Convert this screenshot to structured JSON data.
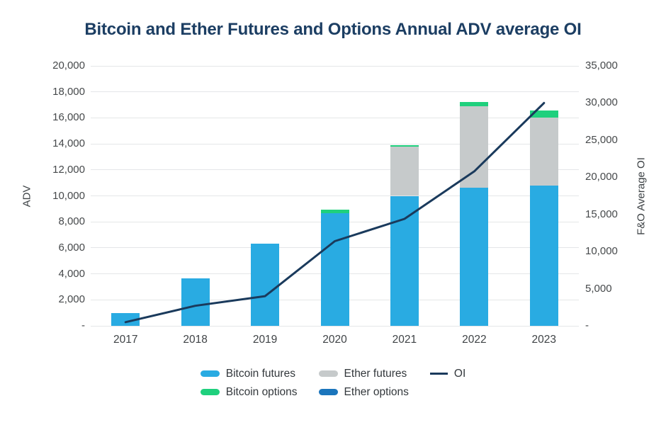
{
  "page": {
    "title": "Bitcoin and Ether Futures and Options Annual ADV average OI"
  },
  "chart_data": {
    "type": "bar",
    "subtype": "stacked-bars-with-line-overlay",
    "title": "Bitcoin and Ether Futures and Options Annual ADV average OI",
    "categories": [
      "2017",
      "2018",
      "2019",
      "2020",
      "2021",
      "2022",
      "2023"
    ],
    "series": [
      {
        "name": "Bitcoin futures",
        "color": "#29abe2",
        "axis": "left",
        "values": [
          1000,
          3650,
          6300,
          8650,
          10000,
          10650,
          10800
        ]
      },
      {
        "name": "Ether futures",
        "color": "#c6cacb",
        "axis": "left",
        "values": [
          0,
          0,
          0,
          0,
          3800,
          6250,
          5200
        ]
      },
      {
        "name": "Bitcoin options",
        "color": "#1fd07d",
        "axis": "left",
        "values": [
          0,
          0,
          0,
          270,
          100,
          330,
          550
        ]
      },
      {
        "name": "Ether options",
        "color": "#1b75bc",
        "axis": "left",
        "values": [
          0,
          0,
          0,
          0,
          0,
          0,
          0
        ]
      }
    ],
    "line_series": {
      "name": "OI",
      "color": "#1a3a5c",
      "axis": "right",
      "values": [
        500,
        2700,
        4000,
        11400,
        14400,
        20800,
        30000
      ]
    },
    "left_axis": {
      "label": "ADV",
      "min": 0,
      "max": 20000,
      "step": 2000,
      "zero_label": "-"
    },
    "right_axis": {
      "label": "F&O Average OI",
      "min": 0,
      "max": 35000,
      "step": 5000,
      "zero_label": "-"
    },
    "grid": true,
    "legend_position": "bottom"
  },
  "legend": {
    "items": [
      {
        "label": "Bitcoin futures",
        "color": "#29abe2",
        "type": "swatch"
      },
      {
        "label": "Bitcoin options",
        "color": "#1fd07d",
        "type": "swatch"
      },
      {
        "label": "Ether futures",
        "color": "#c6cacb",
        "type": "swatch"
      },
      {
        "label": "Ether options",
        "color": "#1b75bc",
        "type": "swatch"
      },
      {
        "label": "OI",
        "color": "#1a3a5c",
        "type": "line"
      }
    ]
  }
}
